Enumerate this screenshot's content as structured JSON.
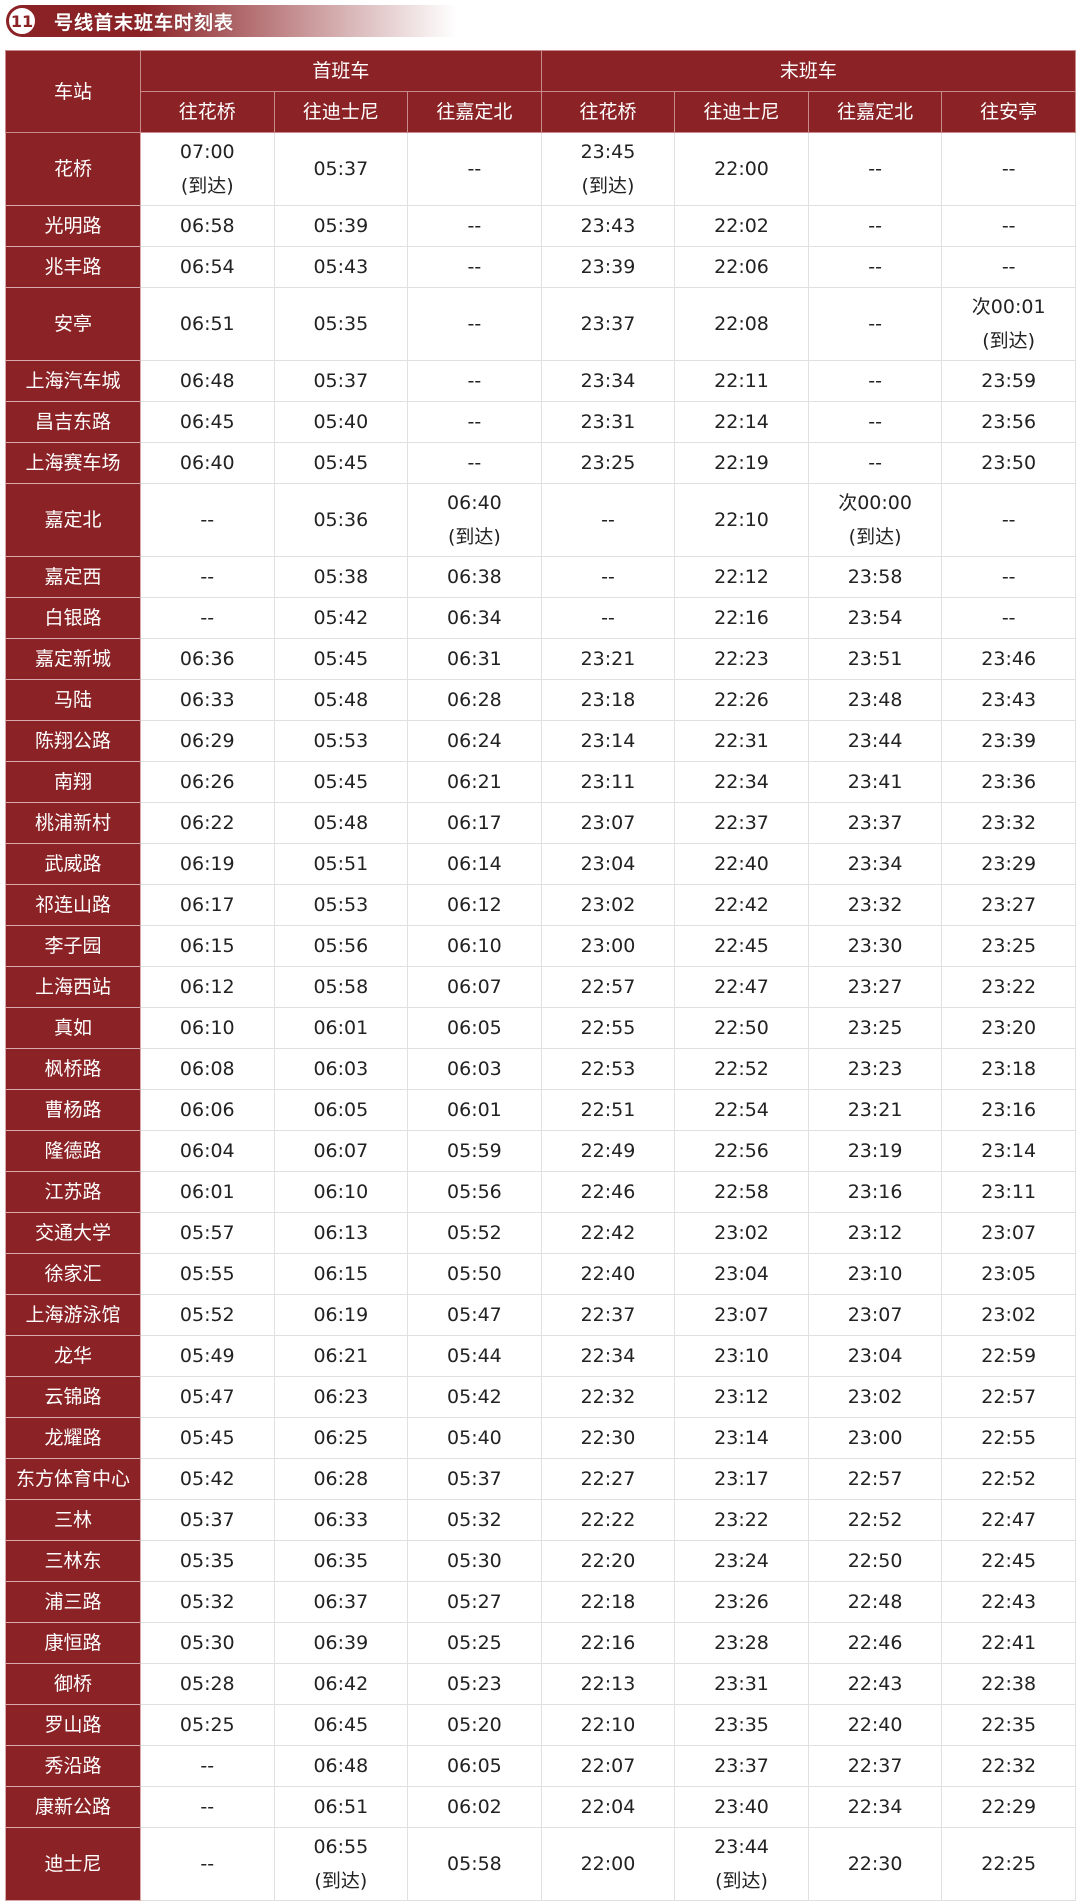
{
  "title": {
    "line_number": "11",
    "text": "号线首末班车时刻表"
  },
  "colors": {
    "header_bg": "#8b2226",
    "header_text": "#ffffff"
  },
  "header": {
    "station": "车站",
    "first_train": "首班车",
    "last_train": "末班车",
    "first_dirs": [
      "往花桥",
      "往迪士尼",
      "往嘉定北"
    ],
    "last_dirs": [
      "往花桥",
      "往迪士尼",
      "往嘉定北",
      "往安亭"
    ]
  },
  "rows": [
    {
      "station": "花桥",
      "times": [
        "07:00\n(到达)",
        "05:37",
        "--",
        "23:45\n(到达)",
        "22:00",
        "--",
        "--"
      ]
    },
    {
      "station": "光明路",
      "times": [
        "06:58",
        "05:39",
        "--",
        "23:43",
        "22:02",
        "--",
        "--"
      ]
    },
    {
      "station": "兆丰路",
      "times": [
        "06:54",
        "05:43",
        "--",
        "23:39",
        "22:06",
        "--",
        "--"
      ]
    },
    {
      "station": "安亭",
      "times": [
        "06:51",
        "05:35",
        "--",
        "23:37",
        "22:08",
        "--",
        "次00:01\n(到达)"
      ]
    },
    {
      "station": "上海汽车城",
      "times": [
        "06:48",
        "05:37",
        "--",
        "23:34",
        "22:11",
        "--",
        "23:59"
      ]
    },
    {
      "station": "昌吉东路",
      "times": [
        "06:45",
        "05:40",
        "--",
        "23:31",
        "22:14",
        "--",
        "23:56"
      ]
    },
    {
      "station": "上海赛车场",
      "times": [
        "06:40",
        "05:45",
        "--",
        "23:25",
        "22:19",
        "--",
        "23:50"
      ]
    },
    {
      "station": "嘉定北",
      "times": [
        "--",
        "05:36",
        "06:40\n(到达)",
        "--",
        "22:10",
        "次00:00\n(到达)",
        "--"
      ]
    },
    {
      "station": "嘉定西",
      "times": [
        "--",
        "05:38",
        "06:38",
        "--",
        "22:12",
        "23:58",
        "--"
      ]
    },
    {
      "station": "白银路",
      "times": [
        "--",
        "05:42",
        "06:34",
        "--",
        "22:16",
        "23:54",
        "--"
      ]
    },
    {
      "station": "嘉定新城",
      "times": [
        "06:36",
        "05:45",
        "06:31",
        "23:21",
        "22:23",
        "23:51",
        "23:46"
      ]
    },
    {
      "station": "马陆",
      "times": [
        "06:33",
        "05:48",
        "06:28",
        "23:18",
        "22:26",
        "23:48",
        "23:43"
      ]
    },
    {
      "station": "陈翔公路",
      "times": [
        "06:29",
        "05:53",
        "06:24",
        "23:14",
        "22:31",
        "23:44",
        "23:39"
      ]
    },
    {
      "station": "南翔",
      "times": [
        "06:26",
        "05:45",
        "06:21",
        "23:11",
        "22:34",
        "23:41",
        "23:36"
      ]
    },
    {
      "station": "桃浦新村",
      "times": [
        "06:22",
        "05:48",
        "06:17",
        "23:07",
        "22:37",
        "23:37",
        "23:32"
      ]
    },
    {
      "station": "武威路",
      "times": [
        "06:19",
        "05:51",
        "06:14",
        "23:04",
        "22:40",
        "23:34",
        "23:29"
      ]
    },
    {
      "station": "祁连山路",
      "times": [
        "06:17",
        "05:53",
        "06:12",
        "23:02",
        "22:42",
        "23:32",
        "23:27"
      ]
    },
    {
      "station": "李子园",
      "times": [
        "06:15",
        "05:56",
        "06:10",
        "23:00",
        "22:45",
        "23:30",
        "23:25"
      ]
    },
    {
      "station": "上海西站",
      "times": [
        "06:12",
        "05:58",
        "06:07",
        "22:57",
        "22:47",
        "23:27",
        "23:22"
      ]
    },
    {
      "station": "真如",
      "times": [
        "06:10",
        "06:01",
        "06:05",
        "22:55",
        "22:50",
        "23:25",
        "23:20"
      ]
    },
    {
      "station": "枫桥路",
      "times": [
        "06:08",
        "06:03",
        "06:03",
        "22:53",
        "22:52",
        "23:23",
        "23:18"
      ]
    },
    {
      "station": "曹杨路",
      "times": [
        "06:06",
        "06:05",
        "06:01",
        "22:51",
        "22:54",
        "23:21",
        "23:16"
      ]
    },
    {
      "station": "隆德路",
      "times": [
        "06:04",
        "06:07",
        "05:59",
        "22:49",
        "22:56",
        "23:19",
        "23:14"
      ]
    },
    {
      "station": "江苏路",
      "times": [
        "06:01",
        "06:10",
        "05:56",
        "22:46",
        "22:58",
        "23:16",
        "23:11"
      ]
    },
    {
      "station": "交通大学",
      "times": [
        "05:57",
        "06:13",
        "05:52",
        "22:42",
        "23:02",
        "23:12",
        "23:07"
      ]
    },
    {
      "station": "徐家汇",
      "times": [
        "05:55",
        "06:15",
        "05:50",
        "22:40",
        "23:04",
        "23:10",
        "23:05"
      ]
    },
    {
      "station": "上海游泳馆",
      "times": [
        "05:52",
        "06:19",
        "05:47",
        "22:37",
        "23:07",
        "23:07",
        "23:02"
      ]
    },
    {
      "station": "龙华",
      "times": [
        "05:49",
        "06:21",
        "05:44",
        "22:34",
        "23:10",
        "23:04",
        "22:59"
      ]
    },
    {
      "station": "云锦路",
      "times": [
        "05:47",
        "06:23",
        "05:42",
        "22:32",
        "23:12",
        "23:02",
        "22:57"
      ]
    },
    {
      "station": "龙耀路",
      "times": [
        "05:45",
        "06:25",
        "05:40",
        "22:30",
        "23:14",
        "23:00",
        "22:55"
      ]
    },
    {
      "station": "东方体育中心",
      "times": [
        "05:42",
        "06:28",
        "05:37",
        "22:27",
        "23:17",
        "22:57",
        "22:52"
      ]
    },
    {
      "station": "三林",
      "times": [
        "05:37",
        "06:33",
        "05:32",
        "22:22",
        "23:22",
        "22:52",
        "22:47"
      ]
    },
    {
      "station": "三林东",
      "times": [
        "05:35",
        "06:35",
        "05:30",
        "22:20",
        "23:24",
        "22:50",
        "22:45"
      ]
    },
    {
      "station": "浦三路",
      "times": [
        "05:32",
        "06:37",
        "05:27",
        "22:18",
        "23:26",
        "22:48",
        "22:43"
      ]
    },
    {
      "station": "康恒路",
      "times": [
        "05:30",
        "06:39",
        "05:25",
        "22:16",
        "23:28",
        "22:46",
        "22:41"
      ]
    },
    {
      "station": "御桥",
      "times": [
        "05:28",
        "06:42",
        "05:23",
        "22:13",
        "23:31",
        "22:43",
        "22:38"
      ]
    },
    {
      "station": "罗山路",
      "times": [
        "05:25",
        "06:45",
        "05:20",
        "22:10",
        "23:35",
        "22:40",
        "22:35"
      ]
    },
    {
      "station": "秀沿路",
      "times": [
        "--",
        "06:48",
        "06:05",
        "22:07",
        "23:37",
        "22:37",
        "22:32"
      ]
    },
    {
      "station": "康新公路",
      "times": [
        "--",
        "06:51",
        "06:02",
        "22:04",
        "23:40",
        "22:34",
        "22:29"
      ]
    },
    {
      "station": "迪士尼",
      "times": [
        "--",
        "06:55\n(到达)",
        "05:58",
        "22:00",
        "23:44\n(到达)",
        "22:30",
        "22:25"
      ]
    }
  ]
}
